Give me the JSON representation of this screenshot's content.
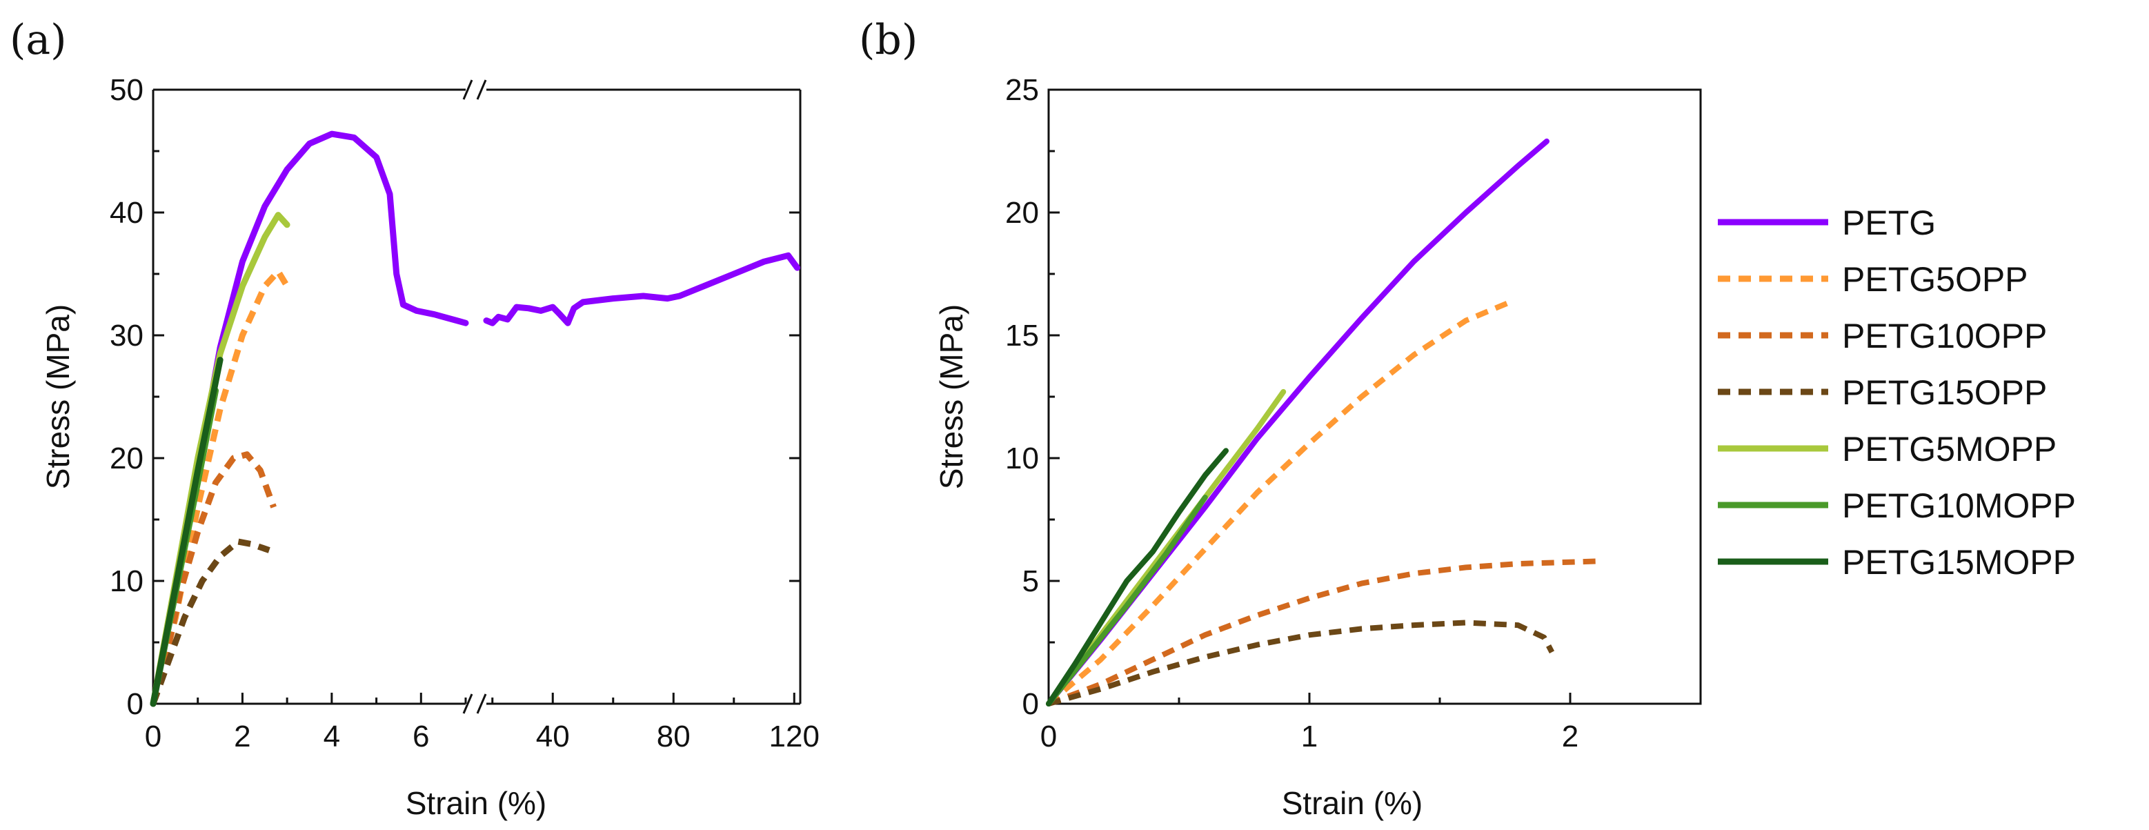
{
  "chart_data": [
    {
      "panel_label": "(a)",
      "type": "line",
      "xlabel": "Strain (%)",
      "ylabel": "Stress (MPa)",
      "ylim": [
        0,
        50
      ],
      "yticks": [
        "0",
        "10",
        "20",
        "30",
        "40",
        "50"
      ],
      "x_axis_break": {
        "left_range": [
          0,
          7.0
        ],
        "right_range": [
          18,
          122
        ]
      },
      "xticks_left": [
        "0",
        "2",
        "4",
        "6"
      ],
      "xticks_right": [
        "40",
        "80",
        "120"
      ],
      "series": [
        {
          "name": "PETG",
          "color": "#8b00ff",
          "dash": "solid",
          "points": [
            [
              0,
              0
            ],
            [
              0.5,
              9
            ],
            [
              1,
              19
            ],
            [
              1.5,
              29
            ],
            [
              2,
              36
            ],
            [
              2.5,
              40.5
            ],
            [
              3,
              43.5
            ],
            [
              3.5,
              45.6
            ],
            [
              4,
              46.4
            ],
            [
              4.5,
              46.1
            ],
            [
              5,
              44.5
            ],
            [
              5.3,
              41.5
            ],
            [
              5.45,
              35
            ],
            [
              5.6,
              32.5
            ],
            [
              5.9,
              32
            ],
            [
              6.3,
              31.7
            ],
            [
              6.8,
              31.2
            ],
            [
              7.0,
              31
            ]
          ],
          "points_right": [
            [
              18,
              31.2
            ],
            [
              20,
              31
            ],
            [
              22,
              31.5
            ],
            [
              25,
              31.3
            ],
            [
              28,
              32.3
            ],
            [
              32,
              32.2
            ],
            [
              36,
              32
            ],
            [
              40,
              32.3
            ],
            [
              42,
              31.8
            ],
            [
              45,
              31.0
            ],
            [
              47,
              32.2
            ],
            [
              50,
              32.7
            ],
            [
              60,
              33
            ],
            [
              70,
              33.2
            ],
            [
              78,
              33
            ],
            [
              82,
              33.2
            ],
            [
              90,
              34
            ],
            [
              100,
              35
            ],
            [
              110,
              36
            ],
            [
              118,
              36.5
            ],
            [
              121,
              35.5
            ]
          ]
        },
        {
          "name": "PETG5OPP",
          "color": "#ff9933",
          "dash": "dashed",
          "points": [
            [
              0,
              0
            ],
            [
              0.5,
              7
            ],
            [
              1,
              16
            ],
            [
              1.5,
              24
            ],
            [
              2,
              30
            ],
            [
              2.5,
              34
            ],
            [
              2.8,
              35.2
            ],
            [
              3,
              34
            ]
          ]
        },
        {
          "name": "PETG10OPP",
          "color": "#d2691e",
          "dash": "dashed",
          "points": [
            [
              0,
              0
            ],
            [
              0.3,
              4
            ],
            [
              0.6,
              9
            ],
            [
              1,
              14
            ],
            [
              1.4,
              18
            ],
            [
              1.8,
              20
            ],
            [
              2.1,
              20.3
            ],
            [
              2.4,
              19
            ],
            [
              2.7,
              16
            ]
          ]
        },
        {
          "name": "PETG15OPP",
          "color": "#6b4716",
          "dash": "dashed",
          "points": [
            [
              0,
              0
            ],
            [
              0.3,
              3
            ],
            [
              0.7,
              7
            ],
            [
              1.1,
              10
            ],
            [
              1.5,
              12
            ],
            [
              1.9,
              13.2
            ],
            [
              2.2,
              13
            ],
            [
              2.6,
              12.5
            ]
          ]
        },
        {
          "name": "PETG5MOPP",
          "color": "#a8c83c",
          "dash": "solid",
          "points": [
            [
              0,
              0
            ],
            [
              0.5,
              10
            ],
            [
              1,
              20
            ],
            [
              1.5,
              28.5
            ],
            [
              2,
              34
            ],
            [
              2.5,
              38
            ],
            [
              2.8,
              39.8
            ],
            [
              3,
              39
            ]
          ]
        },
        {
          "name": "PETG10MOPP",
          "color": "#4a9a2a",
          "dash": "solid",
          "points": [
            [
              0,
              0
            ],
            [
              0.5,
              9
            ],
            [
              1,
              18
            ],
            [
              1.4,
              25.5
            ]
          ]
        },
        {
          "name": "PETG15MOPP",
          "color": "#1a5e1a",
          "dash": "solid",
          "points": [
            [
              0,
              0
            ],
            [
              0.5,
              9.5
            ],
            [
              1,
              19
            ],
            [
              1.5,
              28
            ]
          ]
        }
      ]
    },
    {
      "panel_label": "(b)",
      "type": "line",
      "xlabel": "Strain (%)",
      "ylabel": "Stress (MPa)",
      "xlim": [
        0,
        2.5
      ],
      "ylim": [
        0,
        25
      ],
      "xticks": [
        "0",
        "1",
        "2"
      ],
      "yticks": [
        "0",
        "5",
        "10",
        "15",
        "20",
        "25"
      ],
      "legend_position": "right",
      "series": [
        {
          "name": "PETG",
          "color": "#8b00ff",
          "dash": "solid",
          "points": [
            [
              0,
              0
            ],
            [
              0.2,
              2.6
            ],
            [
              0.4,
              5.3
            ],
            [
              0.6,
              8.0
            ],
            [
              0.8,
              10.8
            ],
            [
              1.0,
              13.3
            ],
            [
              1.2,
              15.7
            ],
            [
              1.4,
              18
            ],
            [
              1.6,
              20
            ],
            [
              1.8,
              21.9
            ],
            [
              1.91,
              22.9
            ]
          ]
        },
        {
          "name": "PETG5OPP",
          "color": "#ff9933",
          "dash": "dashed",
          "points": [
            [
              0,
              0
            ],
            [
              0.2,
              1.8
            ],
            [
              0.4,
              4
            ],
            [
              0.6,
              6.3
            ],
            [
              0.8,
              8.6
            ],
            [
              1.0,
              10.6
            ],
            [
              1.2,
              12.5
            ],
            [
              1.4,
              14.2
            ],
            [
              1.6,
              15.6
            ],
            [
              1.78,
              16.4
            ]
          ]
        },
        {
          "name": "PETG10OPP",
          "color": "#d2691e",
          "dash": "dashed",
          "points": [
            [
              0,
              0
            ],
            [
              0.2,
              0.8
            ],
            [
              0.4,
              1.8
            ],
            [
              0.6,
              2.8
            ],
            [
              0.8,
              3.6
            ],
            [
              1.0,
              4.3
            ],
            [
              1.2,
              4.9
            ],
            [
              1.4,
              5.3
            ],
            [
              1.6,
              5.55
            ],
            [
              1.8,
              5.7
            ],
            [
              2.1,
              5.8
            ]
          ]
        },
        {
          "name": "PETG15OPP",
          "color": "#6b4716",
          "dash": "dashed",
          "points": [
            [
              0,
              0
            ],
            [
              0.2,
              0.6
            ],
            [
              0.4,
              1.3
            ],
            [
              0.6,
              1.9
            ],
            [
              0.8,
              2.4
            ],
            [
              1.0,
              2.8
            ],
            [
              1.2,
              3.05
            ],
            [
              1.4,
              3.2
            ],
            [
              1.6,
              3.3
            ],
            [
              1.8,
              3.2
            ],
            [
              1.9,
              2.7
            ],
            [
              1.93,
              2.1
            ]
          ]
        },
        {
          "name": "PETG5MOPP",
          "color": "#a8c83c",
          "dash": "solid",
          "points": [
            [
              0,
              0
            ],
            [
              0.2,
              2.8
            ],
            [
              0.4,
              5.6
            ],
            [
              0.6,
              8.4
            ],
            [
              0.8,
              11.2
            ],
            [
              0.9,
              12.7
            ]
          ]
        },
        {
          "name": "PETG10MOPP",
          "color": "#4a9a2a",
          "dash": "solid",
          "points": [
            [
              0,
              0
            ],
            [
              0.15,
              2
            ],
            [
              0.3,
              4
            ],
            [
              0.45,
              6.1
            ],
            [
              0.6,
              8.4
            ]
          ]
        },
        {
          "name": "PETG15MOPP",
          "color": "#1a5e1a",
          "dash": "solid",
          "points": [
            [
              0,
              0
            ],
            [
              0.1,
              1.6
            ],
            [
              0.2,
              3.3
            ],
            [
              0.3,
              5
            ],
            [
              0.4,
              6.2
            ],
            [
              0.5,
              7.8
            ],
            [
              0.6,
              9.3
            ],
            [
              0.68,
              10.3
            ]
          ]
        }
      ]
    }
  ]
}
